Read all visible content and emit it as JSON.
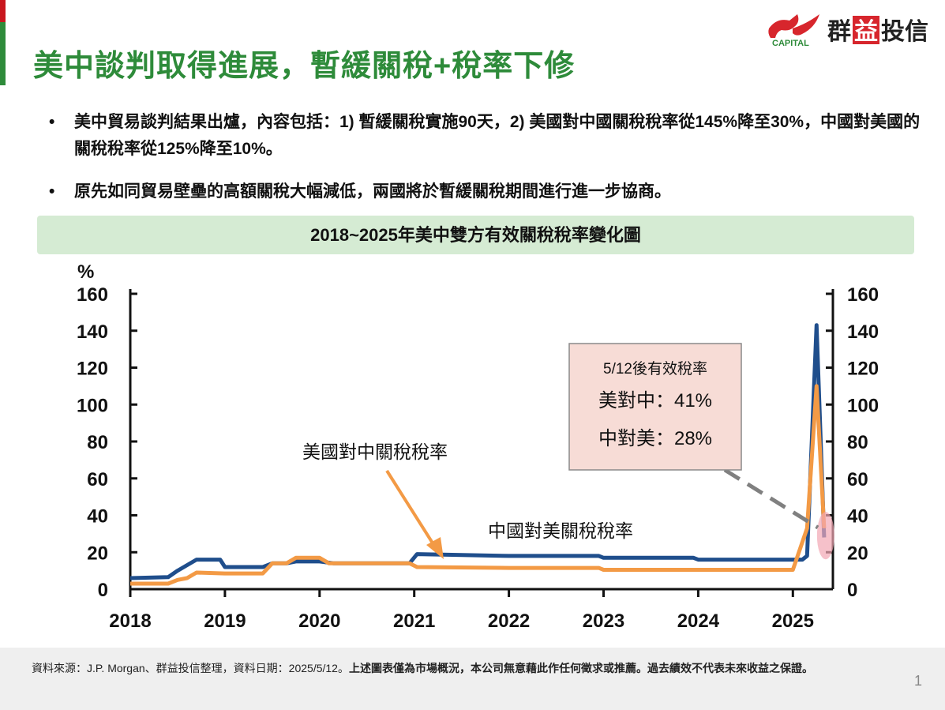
{
  "header": {
    "title": "美中談判取得進展，暫緩關稅+稅率下修",
    "logo": {
      "text_en": "CAPITAL",
      "text_zh": [
        "群",
        "益",
        "投信"
      ]
    }
  },
  "bullets": [
    {
      "marker": "•",
      "text": "美中貿易談判結果出爐，內容包括：1)  暫緩關稅實施90天，2)  美國對中國關稅稅率從145%降至30%，中國對美國的關稅稅率從125%降至10%。"
    },
    {
      "marker": "•",
      "text": "原先如同貿易壁壘的高額關稅大幅減低，兩國將於暫緩關稅期間進行進一步協商。"
    }
  ],
  "chart_data": {
    "type": "line",
    "title": "2018~2025年美中雙方有效關稅稅率變化圖",
    "ylabel": "%",
    "ylim": [
      0,
      160
    ],
    "yticks": [
      0,
      20,
      40,
      60,
      80,
      100,
      120,
      140,
      160
    ],
    "xlim": [
      2018,
      2025.45
    ],
    "xticks": [
      2018,
      2019,
      2020,
      2021,
      2022,
      2023,
      2024,
      2025
    ],
    "grid": false,
    "series": [
      {
        "name": "美國對中關稅稅率",
        "color": "#1f4e8c",
        "x": [
          2018.0,
          2018.4,
          2018.5,
          2018.7,
          2018.95,
          2019.0,
          2019.4,
          2019.5,
          2019.65,
          2019.75,
          2020.0,
          2020.15,
          2020.95,
          2021.03,
          2022.0,
          2022.95,
          2023.0,
          2023.95,
          2024.0,
          2025.1,
          2025.15,
          2025.25,
          2025.33
        ],
        "y": [
          6,
          6.5,
          10,
          16,
          16,
          12,
          12,
          14,
          14,
          15,
          15,
          14,
          14,
          19,
          18,
          18,
          17,
          17,
          16,
          16,
          18,
          143,
          28
        ]
      },
      {
        "name": "中國對美關稅稅率",
        "color": "#f39a45",
        "x": [
          2018.0,
          2018.4,
          2018.5,
          2018.6,
          2018.7,
          2019.0,
          2019.4,
          2019.5,
          2019.65,
          2019.75,
          2020.0,
          2020.1,
          2020.95,
          2021.03,
          2022.0,
          2022.95,
          2023.0,
          2025.0,
          2025.15,
          2025.25,
          2025.33
        ],
        "y": [
          3,
          3,
          5,
          6,
          9,
          8.5,
          8.5,
          14,
          14,
          17,
          17,
          14,
          14,
          12,
          11.5,
          11.5,
          10.5,
          10.5,
          33,
          110,
          33
        ]
      }
    ],
    "annotations": {
      "us_label": "美國對中關稅稅率",
      "cn_label": "中國對美關稅稅率",
      "callout": {
        "title": "5/12後有效稅率",
        "line1": "美對中：41%",
        "line2": "中對美：28%"
      }
    }
  },
  "footer": {
    "source": "資料來源：J.P. Morgan、群益投信整理，資料日期：2025/5/12。",
    "disclaimer": "上述圖表僅為市場概況，本公司無意藉此作任何徵求或推薦。過去績效不代表未來收益之保證。",
    "page_number": "1"
  }
}
